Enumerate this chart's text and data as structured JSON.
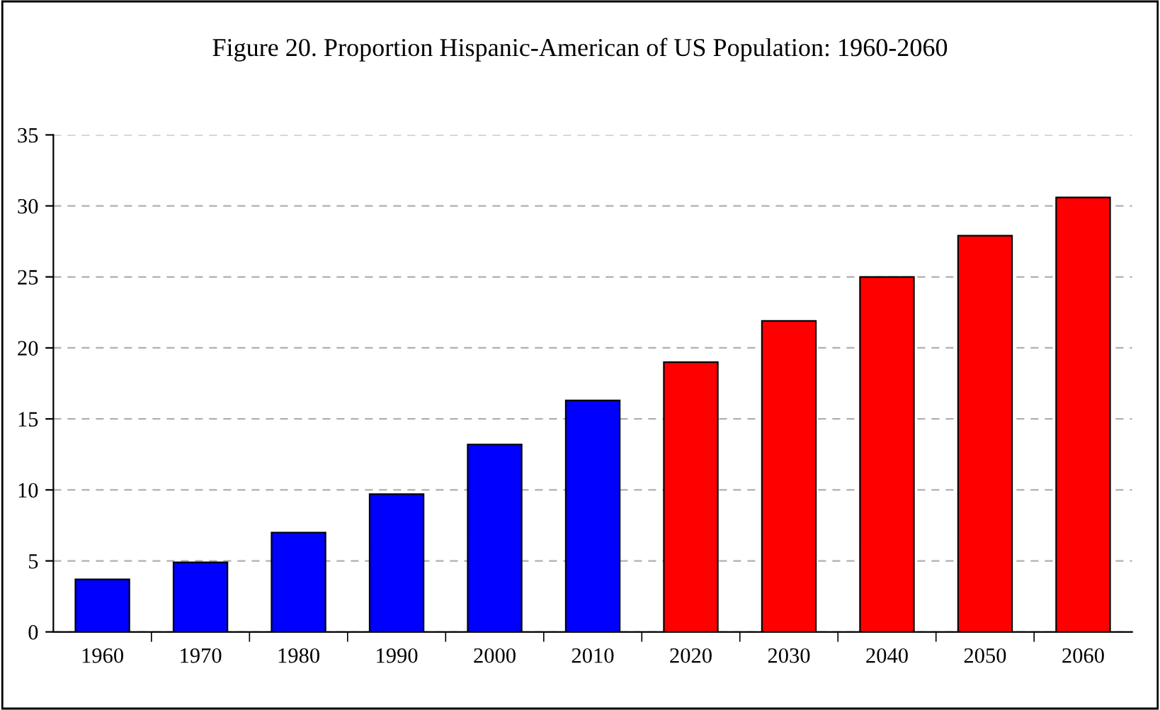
{
  "chart_data": {
    "type": "bar",
    "title": "Figure 20. Proportion Hispanic-American of US Population: 1960-2060",
    "categories": [
      "1960",
      "1970",
      "1980",
      "1990",
      "2000",
      "2010",
      "2020",
      "2030",
      "2040",
      "2050",
      "2060"
    ],
    "values": [
      3.7,
      4.9,
      7.0,
      9.7,
      13.2,
      16.3,
      19.0,
      21.9,
      25.0,
      27.9,
      30.6
    ],
    "colors": [
      "#0000ff",
      "#0000ff",
      "#0000ff",
      "#0000ff",
      "#0000ff",
      "#0000ff",
      "#ff0000",
      "#ff0000",
      "#ff0000",
      "#ff0000",
      "#ff0000"
    ],
    "ylim": [
      0,
      35
    ],
    "yticks": [
      0,
      5,
      10,
      15,
      20,
      25,
      30,
      35
    ],
    "grid": "y",
    "legend": false
  }
}
